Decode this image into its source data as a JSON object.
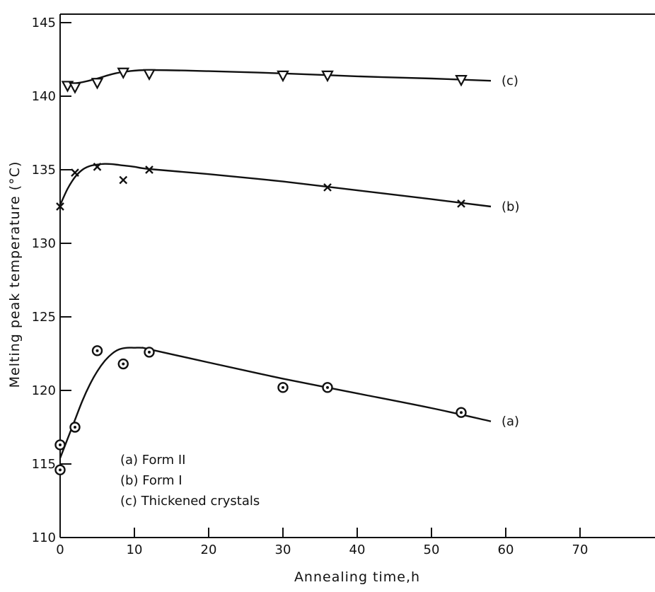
{
  "chart_data": {
    "type": "scatter",
    "xlabel": "Annealing time,h",
    "ylabel": "Melting peak temperature (°C)",
    "xlim": [
      0,
      80
    ],
    "ylim": [
      110,
      145
    ],
    "x_ticks": [
      0,
      10,
      20,
      30,
      40,
      50,
      60,
      70
    ],
    "y_ticks": [
      110,
      115,
      120,
      125,
      130,
      135,
      140,
      145
    ],
    "grid": false,
    "legend": [
      "(a) Form  II",
      "(b) Form  I",
      "(c) Thickened crystals"
    ],
    "series": [
      {
        "name": "(a)",
        "marker": "circle-dot",
        "points": [
          [
            0,
            116.3
          ],
          [
            0,
            114.6
          ],
          [
            2,
            117.5
          ],
          [
            5,
            122.7
          ],
          [
            8.5,
            121.8
          ],
          [
            12,
            122.6
          ],
          [
            30,
            120.2
          ],
          [
            36,
            120.2
          ],
          [
            54,
            118.5
          ]
        ],
        "curve": [
          [
            0,
            115.4
          ],
          [
            1,
            116.7
          ],
          [
            2,
            118.0
          ],
          [
            3,
            119.3
          ],
          [
            4,
            120.4
          ],
          [
            5,
            121.3
          ],
          [
            6,
            122.0
          ],
          [
            7,
            122.5
          ],
          [
            8,
            122.8
          ],
          [
            9,
            122.9
          ],
          [
            10,
            122.9
          ],
          [
            11,
            122.9
          ],
          [
            12,
            122.8
          ],
          [
            20,
            121.9
          ],
          [
            30,
            120.8
          ],
          [
            40,
            119.8
          ],
          [
            50,
            118.8
          ],
          [
            58,
            117.9
          ]
        ]
      },
      {
        "name": "(b)",
        "marker": "cross",
        "points": [
          [
            0,
            132.5
          ],
          [
            2,
            134.8
          ],
          [
            5,
            135.2
          ],
          [
            8.5,
            134.3
          ],
          [
            12,
            135.0
          ],
          [
            36,
            133.8
          ],
          [
            54,
            132.7
          ]
        ],
        "curve": [
          [
            0,
            132.6
          ],
          [
            1,
            133.7
          ],
          [
            2,
            134.5
          ],
          [
            3,
            135.0
          ],
          [
            4,
            135.25
          ],
          [
            5,
            135.35
          ],
          [
            6,
            135.4
          ],
          [
            7,
            135.38
          ],
          [
            8,
            135.32
          ],
          [
            10,
            135.2
          ],
          [
            12,
            135.05
          ],
          [
            20,
            134.7
          ],
          [
            30,
            134.2
          ],
          [
            40,
            133.6
          ],
          [
            50,
            133.0
          ],
          [
            58,
            132.5
          ]
        ]
      },
      {
        "name": "(c)",
        "marker": "triangle-down",
        "points": [
          [
            1,
            140.7
          ],
          [
            2,
            140.6
          ],
          [
            5,
            140.9
          ],
          [
            8.5,
            141.6
          ],
          [
            12,
            141.5
          ],
          [
            30,
            141.4
          ],
          [
            36,
            141.4
          ],
          [
            54,
            141.1
          ]
        ],
        "curve": [
          [
            1,
            140.8
          ],
          [
            3,
            140.95
          ],
          [
            5,
            141.2
          ],
          [
            7,
            141.5
          ],
          [
            9,
            141.68
          ],
          [
            12,
            141.78
          ],
          [
            20,
            141.7
          ],
          [
            30,
            141.55
          ],
          [
            40,
            141.35
          ],
          [
            50,
            141.2
          ],
          [
            58,
            141.05
          ]
        ]
      }
    ]
  }
}
